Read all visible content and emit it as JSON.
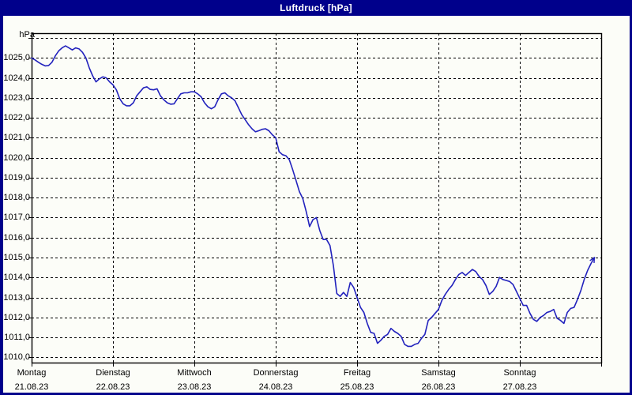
{
  "window": {
    "title": "Luftdruck [hPa]"
  },
  "colors": {
    "frame_navy": "#00008B",
    "panel_background": "#fcfdf8",
    "line_blue": "#2222bd",
    "grid_black": "#000000",
    "title_text": "#ffffff"
  },
  "chart_data": {
    "type": "line",
    "title": "Luftdruck [hPa]",
    "ylabel": "hPa",
    "unit": "hPa",
    "ylim": [
      1010,
      1026
    ],
    "y_gridline_step": 1.0,
    "y_tick_labels": [
      "1025,0",
      "1024,0",
      "1023,0",
      "1022,0",
      "1021,0",
      "1020,0",
      "1019,0",
      "1018,0",
      "1017,0",
      "1016,0",
      "1015,0",
      "1014,0",
      "1013,0",
      "1012,0",
      "1011,0",
      "1010,0"
    ],
    "grid": "dashed, horizontal every 1 hPa, vertical at each day boundary",
    "legend_position": "none",
    "x_axis_description": "One week, hourly samples from Montag 00:00 to Sonntag 22:00",
    "days": [
      {
        "name": "Montag",
        "date": "21.08.23"
      },
      {
        "name": "Dienstag",
        "date": "22.08.23"
      },
      {
        "name": "Mittwoch",
        "date": "23.08.23"
      },
      {
        "name": "Donnerstag",
        "date": "24.08.23"
      },
      {
        "name": "Freitag",
        "date": "25.08.23"
      },
      {
        "name": "Samstag",
        "date": "26.08.23"
      },
      {
        "name": "Sonntag",
        "date": "27.08.23"
      }
    ],
    "series": [
      {
        "name": "Luftdruck",
        "unit": "hPa",
        "step_hours": 1,
        "start": "Montag 21.08.23 00:00",
        "end": "Sonntag 27.08.23 22:00",
        "values": [
          1025.0,
          1024.9,
          1024.78,
          1024.68,
          1024.6,
          1024.62,
          1024.78,
          1025.1,
          1025.35,
          1025.5,
          1025.6,
          1025.5,
          1025.4,
          1025.5,
          1025.45,
          1025.28,
          1025.0,
          1024.5,
          1024.1,
          1023.8,
          1023.95,
          1024.05,
          1024.0,
          1023.8,
          1023.65,
          1023.4,
          1022.95,
          1022.7,
          1022.6,
          1022.6,
          1022.75,
          1023.1,
          1023.3,
          1023.5,
          1023.55,
          1023.42,
          1023.4,
          1023.45,
          1023.1,
          1022.9,
          1022.75,
          1022.68,
          1022.7,
          1022.95,
          1023.2,
          1023.25,
          1023.25,
          1023.3,
          1023.3,
          1023.2,
          1023.05,
          1022.75,
          1022.55,
          1022.45,
          1022.55,
          1022.9,
          1023.2,
          1023.25,
          1023.1,
          1023.0,
          1022.85,
          1022.5,
          1022.15,
          1021.9,
          1021.65,
          1021.45,
          1021.3,
          1021.35,
          1021.42,
          1021.45,
          1021.35,
          1021.15,
          1021.0,
          1020.3,
          1020.15,
          1020.1,
          1019.9,
          1019.4,
          1018.85,
          1018.3,
          1017.95,
          1017.3,
          1016.55,
          1016.9,
          1017.0,
          1016.35,
          1015.9,
          1015.9,
          1015.6,
          1014.6,
          1013.2,
          1013.05,
          1013.25,
          1013.05,
          1013.75,
          1013.5,
          1013.0,
          1012.5,
          1012.25,
          1011.7,
          1011.25,
          1011.2,
          1010.7,
          1010.85,
          1011.05,
          1011.15,
          1011.45,
          1011.3,
          1011.2,
          1011.05,
          1010.65,
          1010.55,
          1010.55,
          1010.65,
          1010.7,
          1010.95,
          1011.15,
          1011.85,
          1012.0,
          1012.2,
          1012.4,
          1012.85,
          1013.15,
          1013.4,
          1013.6,
          1013.9,
          1014.15,
          1014.25,
          1014.1,
          1014.25,
          1014.4,
          1014.3,
          1014.05,
          1013.9,
          1013.6,
          1013.15,
          1013.3,
          1013.55,
          1014.0,
          1013.9,
          1013.85,
          1013.8,
          1013.65,
          1013.3,
          1012.95,
          1012.6,
          1012.6,
          1012.2,
          1011.9,
          1011.8,
          1012.0,
          1012.1,
          1012.25,
          1012.3,
          1012.4,
          1011.95,
          1011.85,
          1011.7,
          1012.25,
          1012.45,
          1012.5,
          1012.9,
          1013.35,
          1013.9,
          1014.35,
          1014.7,
          1015.0
        ]
      }
    ]
  }
}
